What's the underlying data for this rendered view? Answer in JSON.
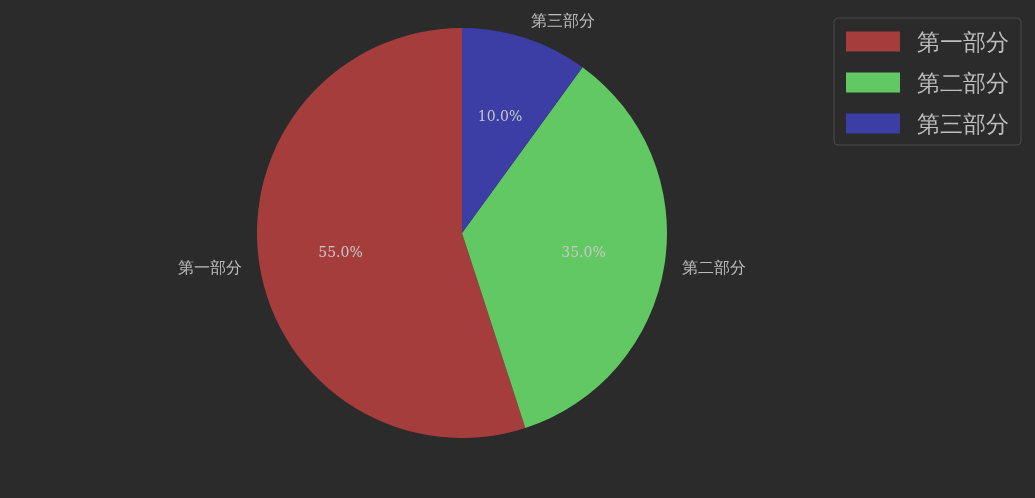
{
  "chart_data": {
    "type": "pie",
    "categories": [
      "第一部分",
      "第二部分",
      "第三部分"
    ],
    "values": [
      55,
      35,
      10
    ],
    "value_labels": [
      "55.0%",
      "35.0%",
      "10.0%"
    ],
    "colors": [
      "#a63d3d",
      "#62c864",
      "#3d3da6"
    ],
    "legend": "top right"
  }
}
